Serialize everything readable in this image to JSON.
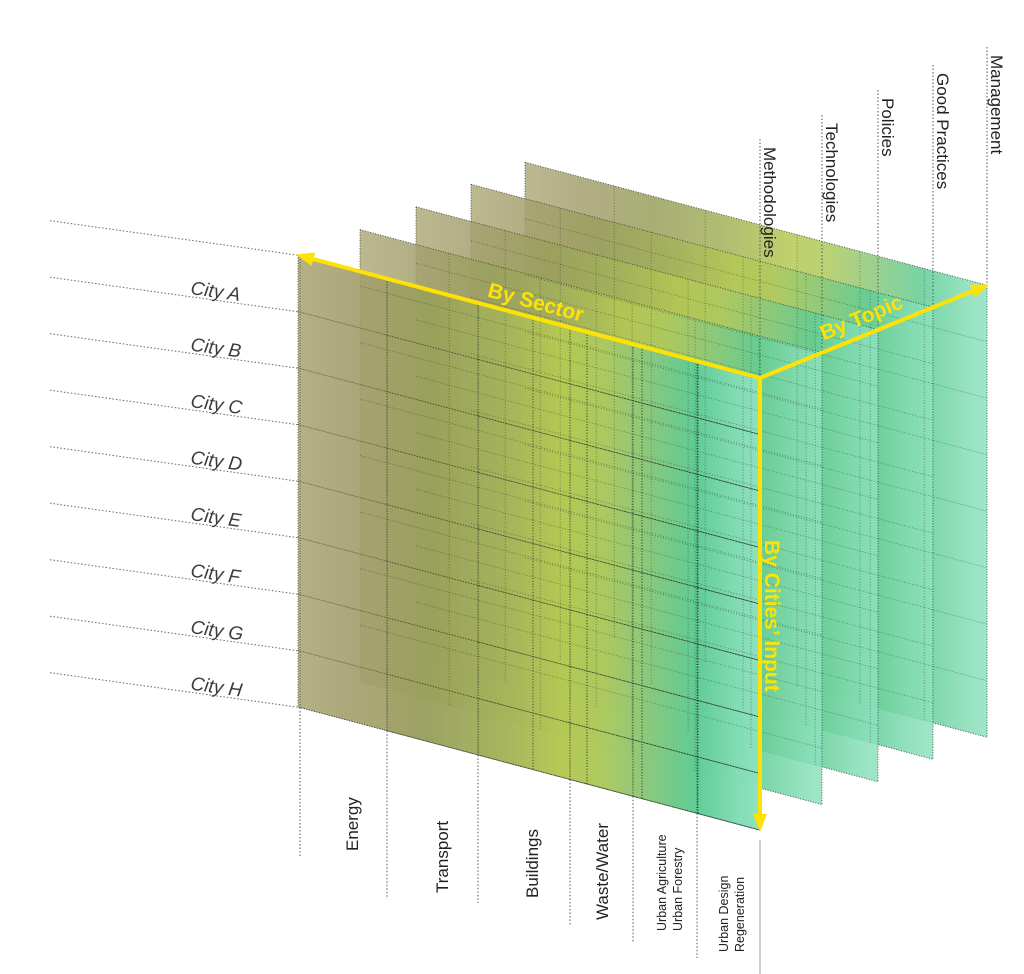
{
  "diagram": {
    "type": "3d-matrix-diagram",
    "axes": {
      "sector": {
        "label": "By Sector",
        "items": [
          "Energy",
          "Transport",
          "Buildings",
          "Waste/Water",
          [
            "Urban Agriculture",
            "Urban Forestry"
          ],
          [
            "Urban Design",
            "Regeneration"
          ]
        ]
      },
      "topic": {
        "label": "By Topic",
        "items": [
          "Methodologies",
          "Technologies",
          "Policies",
          "Good Practices",
          "Management"
        ]
      },
      "cities": {
        "label": "By Cities’ Input",
        "items": [
          "City A",
          "City B",
          "City C",
          "City D",
          "City E",
          "City F",
          "City G",
          "City H"
        ]
      }
    },
    "colors": {
      "axis_yellow": "#FFE205",
      "plane_far_khaki": "#b0ab7c",
      "plane_mid_yellowgreen": "#b5c852",
      "plane_near_mint": "#8fe2c0",
      "grid_line": "#32402f",
      "label_text": "#222222"
    }
  }
}
